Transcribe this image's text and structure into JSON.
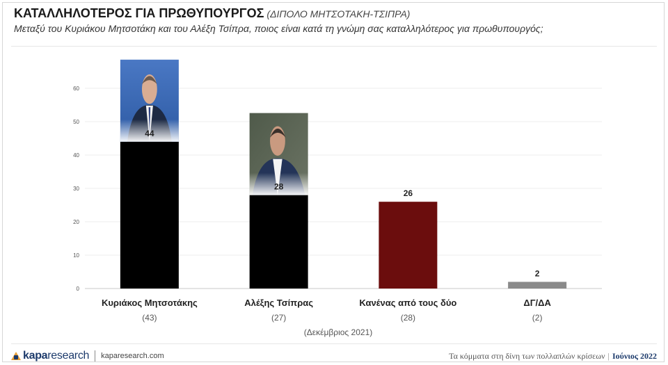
{
  "header": {
    "title": "ΚΑΤΑΛΛΗΛΟΤΕΡΟΣ ΓΙΑ ΠΡΩΘΥΠΟΥΡΓΟΣ",
    "subtitle": "(ΔΙΠΟΛΟ ΜΗΤΣΟΤΑΚΗ-ΤΣΙΠΡΑ)",
    "question": "Μεταξύ του Κυριάκου Μητσοτάκη και του Αλέξη Τσίπρα, ποιος είναι κατά τη γνώμη σας καταλληλότερος για πρωθυπουργός;"
  },
  "chart_data": {
    "type": "bar",
    "title": "ΚΑΤΑΛΛΗΛΟΤΕΡΟΣ ΓΙΑ ΠΡΩΘΥΠΟΥΡΓΟΣ",
    "categories": [
      "Κυριάκος Μητσοτάκης",
      "Αλέξης Τσίπρας",
      "Κανένας από τους δύο",
      "ΔΓ/ΔΑ"
    ],
    "values": [
      44,
      28,
      26,
      2
    ],
    "previous_values": [
      "(43)",
      "(27)",
      "(28)",
      "(2)"
    ],
    "previous_label": "(Δεκέμβριος 2021)",
    "colors": [
      "#000000",
      "#000000",
      "#6b0d0d",
      "#8a8a8a"
    ],
    "photos": [
      "portrait-mitsotakis",
      "portrait-tsipras",
      "",
      ""
    ],
    "yticks": [
      0,
      10,
      20,
      30,
      40,
      50,
      60
    ],
    "ylim": [
      0,
      60
    ],
    "grid": true,
    "xlabel": "",
    "ylabel": ""
  },
  "footer": {
    "brand_bold": "kapa",
    "brand_rest": "research",
    "website": "kaparesearch.com",
    "report_title": "Τα κόμματα στη δίνη των πολλαπλών κρίσεων",
    "date": "Ιούνιος 2022"
  }
}
